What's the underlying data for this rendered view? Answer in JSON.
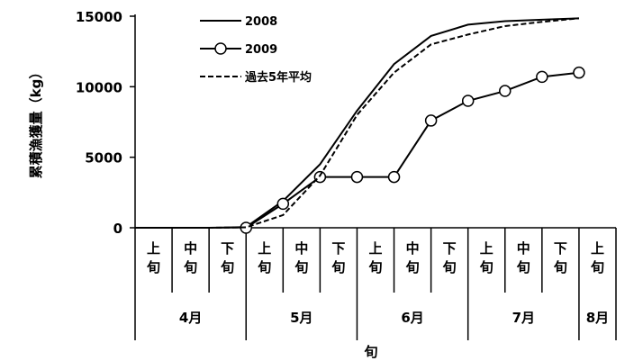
{
  "chart_data": {
    "type": "line",
    "ylabel": "累積漁獲量（kg）",
    "xlabel": "旬",
    "ylim": [
      0,
      15000
    ],
    "yticks": [
      0,
      5000,
      10000,
      15000
    ],
    "ytick_labels": [
      "0",
      "5000",
      "10000",
      "15000"
    ],
    "categories": [
      {
        "label": "上旬",
        "month": "4月"
      },
      {
        "label": "中旬",
        "month": "4月"
      },
      {
        "label": "下旬",
        "month": "4月"
      },
      {
        "label": "上旬",
        "month": "5月"
      },
      {
        "label": "中旬",
        "month": "5月"
      },
      {
        "label": "下旬",
        "month": "5月"
      },
      {
        "label": "上旬",
        "month": "6月"
      },
      {
        "label": "中旬",
        "month": "6月"
      },
      {
        "label": "下旬",
        "month": "6月"
      },
      {
        "label": "上旬",
        "month": "7月"
      },
      {
        "label": "中旬",
        "month": "7月"
      },
      {
        "label": "下旬",
        "month": "7月"
      },
      {
        "label": "上旬",
        "month": "8月"
      }
    ],
    "months": [
      {
        "label": "4月",
        "span": 3
      },
      {
        "label": "5月",
        "span": 3
      },
      {
        "label": "6月",
        "span": 3
      },
      {
        "label": "7月",
        "span": 3
      },
      {
        "label": "8月",
        "span": 1
      }
    ],
    "series": [
      {
        "name": "2008",
        "style": "solid",
        "marker": "none",
        "color": "#000000",
        "values": [
          0,
          0,
          0,
          50,
          1900,
          4500,
          8300,
          11600,
          13600,
          14400,
          14650,
          14750,
          14850
        ]
      },
      {
        "name": "2009",
        "style": "solid",
        "marker": "circle",
        "color": "#000000",
        "values": [
          null,
          null,
          null,
          0,
          1700,
          3600,
          3600,
          3600,
          7600,
          9000,
          9700,
          10700,
          11000
        ]
      },
      {
        "name": "過去5年平均",
        "style": "dashed",
        "marker": "none",
        "color": "#000000",
        "values": [
          0,
          0,
          0,
          30,
          900,
          3700,
          8000,
          11000,
          13000,
          13700,
          14300,
          14600,
          14850
        ]
      }
    ],
    "legend_position": "top-left",
    "grid": false
  }
}
